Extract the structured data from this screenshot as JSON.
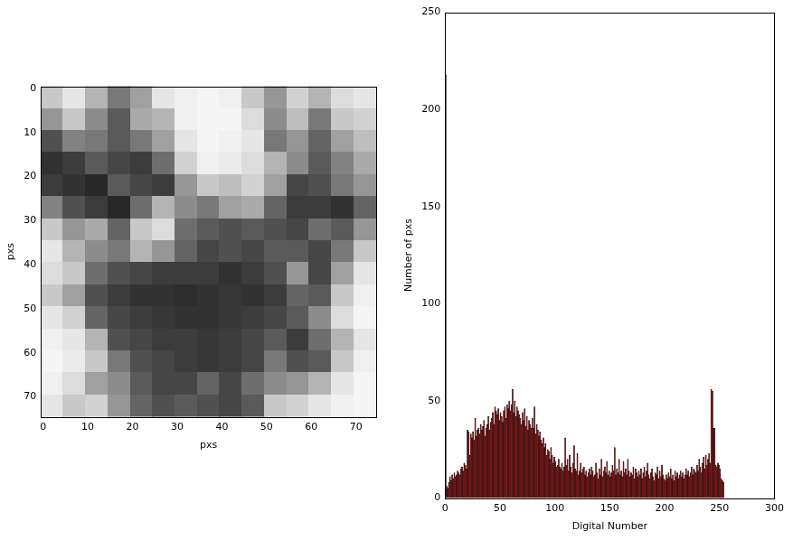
{
  "chart_data": [
    {
      "type": "heatmap",
      "x_label": "pxs",
      "y_label": "pxs",
      "xlim": [
        -0.5,
        74.5
      ],
      "ylim": [
        74.5,
        -0.5
      ],
      "xticks": [
        0,
        10,
        20,
        30,
        40,
        50,
        60,
        70
      ],
      "yticks": [
        0,
        10,
        20,
        30,
        40,
        50,
        60,
        70
      ],
      "color": "gray",
      "value_range": [
        0,
        255
      ],
      "cells": [
        [
          200,
          230,
          180,
          120,
          160,
          230,
          240,
          245,
          240,
          200,
          150,
          210,
          180,
          220,
          230
        ],
        [
          150,
          200,
          140,
          90,
          170,
          180,
          240,
          245,
          245,
          220,
          140,
          190,
          120,
          200,
          210
        ],
        [
          80,
          130,
          120,
          90,
          120,
          160,
          230,
          245,
          240,
          230,
          120,
          150,
          100,
          160,
          190
        ],
        [
          50,
          60,
          90,
          70,
          60,
          110,
          210,
          240,
          235,
          220,
          180,
          140,
          90,
          130,
          170
        ],
        [
          60,
          50,
          40,
          90,
          70,
          60,
          150,
          200,
          190,
          210,
          160,
          70,
          80,
          120,
          150
        ],
        [
          130,
          80,
          60,
          40,
          110,
          180,
          140,
          120,
          160,
          170,
          100,
          60,
          60,
          50,
          100
        ],
        [
          200,
          150,
          170,
          100,
          200,
          220,
          110,
          90,
          80,
          90,
          80,
          70,
          110,
          90,
          150
        ],
        [
          230,
          180,
          140,
          120,
          180,
          150,
          100,
          70,
          80,
          70,
          90,
          90,
          70,
          120,
          200
        ],
        [
          220,
          200,
          110,
          80,
          70,
          60,
          60,
          60,
          50,
          60,
          80,
          150,
          70,
          160,
          230
        ],
        [
          200,
          160,
          80,
          60,
          50,
          50,
          45,
          50,
          55,
          50,
          60,
          100,
          90,
          200,
          240
        ],
        [
          230,
          210,
          100,
          70,
          60,
          55,
          50,
          50,
          55,
          60,
          70,
          90,
          140,
          220,
          245
        ],
        [
          240,
          230,
          180,
          80,
          70,
          60,
          60,
          55,
          60,
          70,
          90,
          60,
          110,
          180,
          230
        ],
        [
          245,
          235,
          200,
          120,
          80,
          70,
          60,
          55,
          60,
          70,
          120,
          80,
          90,
          200,
          240
        ],
        [
          240,
          220,
          160,
          140,
          90,
          70,
          70,
          100,
          70,
          110,
          140,
          150,
          180,
          230,
          245
        ],
        [
          230,
          200,
          210,
          150,
          100,
          80,
          90,
          80,
          70,
          90,
          200,
          210,
          230,
          240,
          245
        ]
      ]
    },
    {
      "type": "histogram",
      "x_label": "Digital Number",
      "y_label": "Number of pxs",
      "xlim": [
        0,
        300
      ],
      "ylim": [
        0,
        250
      ],
      "xticks": [
        0,
        50,
        100,
        150,
        200,
        250,
        300
      ],
      "yticks": [
        0,
        50,
        100,
        150,
        200,
        250
      ],
      "color": "#7a0000",
      "bins": [
        0,
        1,
        2,
        3,
        4,
        5,
        6,
        7,
        8,
        9,
        10,
        11,
        12,
        13,
        14,
        15,
        16,
        17,
        18,
        19,
        20,
        21,
        22,
        23,
        24,
        25,
        26,
        27,
        28,
        29,
        30,
        31,
        32,
        33,
        34,
        35,
        36,
        37,
        38,
        39,
        40,
        41,
        42,
        43,
        44,
        45,
        46,
        47,
        48,
        49,
        50,
        51,
        52,
        53,
        54,
        55,
        56,
        57,
        58,
        59,
        60,
        61,
        62,
        63,
        64,
        65,
        66,
        67,
        68,
        69,
        70,
        71,
        72,
        73,
        74,
        75,
        76,
        77,
        78,
        79,
        80,
        81,
        82,
        83,
        84,
        85,
        86,
        87,
        88,
        89,
        90,
        91,
        92,
        93,
        94,
        95,
        96,
        97,
        98,
        99,
        100,
        101,
        102,
        103,
        104,
        105,
        106,
        107,
        108,
        109,
        110,
        111,
        112,
        113,
        114,
        115,
        116,
        117,
        118,
        119,
        120,
        121,
        122,
        123,
        124,
        125,
        126,
        127,
        128,
        129,
        130,
        131,
        132,
        133,
        134,
        135,
        136,
        137,
        138,
        139,
        140,
        141,
        142,
        143,
        144,
        145,
        146,
        147,
        148,
        149,
        150,
        151,
        152,
        153,
        154,
        155,
        156,
        157,
        158,
        159,
        160,
        161,
        162,
        163,
        164,
        165,
        166,
        167,
        168,
        169,
        170,
        171,
        172,
        173,
        174,
        175,
        176,
        177,
        178,
        179,
        180,
        181,
        182,
        183,
        184,
        185,
        186,
        187,
        188,
        189,
        190,
        191,
        192,
        193,
        194,
        195,
        196,
        197,
        198,
        199,
        200,
        201,
        202,
        203,
        204,
        205,
        206,
        207,
        208,
        209,
        210,
        211,
        212,
        213,
        214,
        215,
        216,
        217,
        218,
        219,
        220,
        221,
        222,
        223,
        224,
        225,
        226,
        227,
        228,
        229,
        230,
        231,
        232,
        233,
        234,
        235,
        236,
        237,
        238,
        239,
        240,
        241,
        242,
        243,
        244,
        245,
        246,
        247,
        248,
        249,
        250,
        251,
        252,
        253,
        254,
        255,
        256
      ],
      "values": [
        218,
        6,
        5,
        8,
        11,
        9,
        12,
        10,
        13,
        11,
        12,
        14,
        13,
        12,
        15,
        16,
        14,
        18,
        17,
        15,
        35,
        34,
        22,
        33,
        31,
        34,
        30,
        41,
        32,
        35,
        36,
        33,
        38,
        35,
        37,
        40,
        32,
        36,
        38,
        42,
        35,
        39,
        41,
        44,
        38,
        47,
        45,
        43,
        46,
        40,
        44,
        42,
        39,
        45,
        47,
        41,
        48,
        46,
        50,
        45,
        48,
        56,
        44,
        50,
        42,
        47,
        45,
        43,
        41,
        38,
        44,
        40,
        46,
        37,
        42,
        35,
        40,
        38,
        36,
        41,
        36,
        47,
        33,
        38,
        35,
        32,
        34,
        30,
        28,
        31,
        26,
        28,
        22,
        25,
        24,
        20,
        26,
        22,
        18,
        21,
        19,
        16,
        17,
        20,
        16,
        15,
        18,
        14,
        16,
        31,
        17,
        20,
        14,
        22,
        16,
        13,
        18,
        27,
        15,
        14,
        23,
        12,
        14,
        18,
        13,
        15,
        16,
        12,
        14,
        11,
        13,
        15,
        12,
        16,
        14,
        11,
        12,
        18,
        13,
        10,
        15,
        12,
        20,
        11,
        14,
        16,
        13,
        19,
        12,
        14,
        11,
        13,
        17,
        14,
        26,
        12,
        15,
        13,
        20,
        12,
        14,
        11,
        19,
        13,
        15,
        12,
        20,
        14,
        11,
        13,
        12,
        16,
        10,
        15,
        13,
        11,
        14,
        12,
        15,
        10,
        13,
        16,
        11,
        14,
        18,
        12,
        10,
        13,
        15,
        11,
        9,
        13,
        12,
        16,
        10,
        14,
        11,
        17,
        12,
        10,
        9,
        12,
        10,
        13,
        11,
        15,
        10,
        12,
        9,
        14,
        11,
        13,
        10,
        12,
        14,
        11,
        13,
        10,
        12,
        15,
        12,
        14,
        11,
        13,
        16,
        12,
        15,
        14,
        13,
        17,
        14,
        20,
        16,
        13,
        18,
        21,
        15,
        22,
        17,
        20,
        23,
        18,
        56,
        55,
        36,
        36,
        17,
        16,
        18,
        17,
        15,
        10,
        9,
        8,
        0,
        0
      ]
    }
  ]
}
